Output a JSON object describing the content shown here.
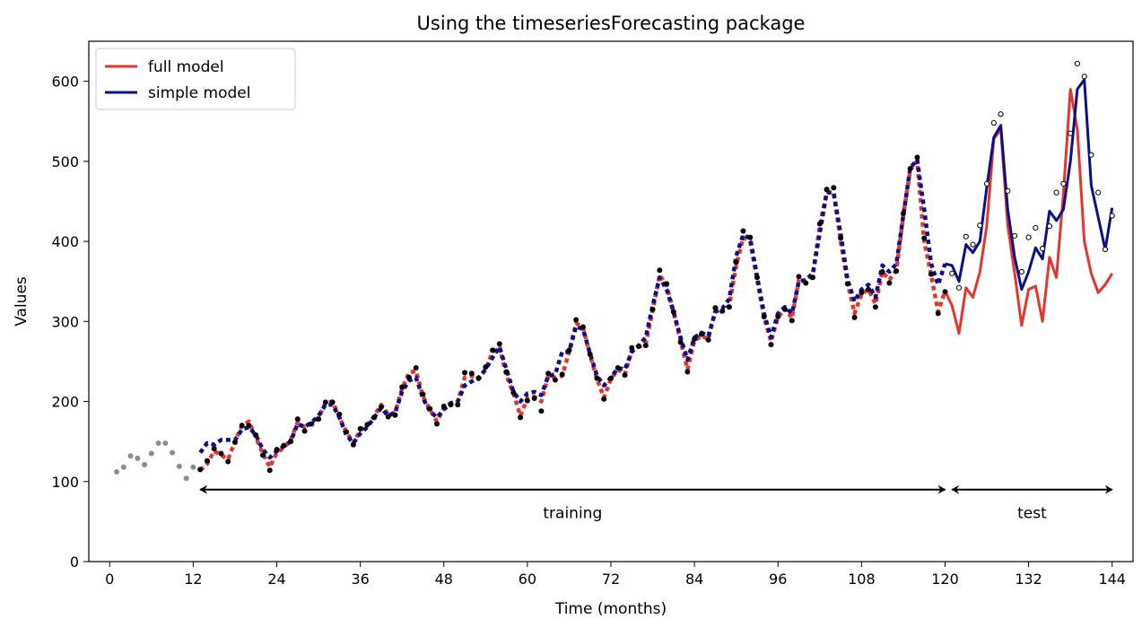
{
  "chart_data": {
    "type": "line",
    "title": "Using the timeseriesForecasting package",
    "xlabel": "Time (months)",
    "ylabel": "Values",
    "xlim": [
      -3,
      147
    ],
    "ylim": [
      0,
      650
    ],
    "xticks": [
      0,
      12,
      24,
      36,
      48,
      60,
      72,
      84,
      96,
      108,
      120,
      132,
      144
    ],
    "yticks": [
      0,
      100,
      200,
      300,
      400,
      500,
      600
    ],
    "grid": false,
    "legend_position": "top-left",
    "legend": [
      {
        "label": "full model",
        "color": "#e8352a"
      },
      {
        "label": "simple model",
        "color": "#0b0f8a"
      }
    ],
    "observed": {
      "x": [
        1,
        2,
        3,
        4,
        5,
        6,
        7,
        8,
        9,
        10,
        11,
        12,
        13,
        14,
        15,
        16,
        17,
        18,
        19,
        20,
        21,
        22,
        23,
        24,
        25,
        26,
        27,
        28,
        29,
        30,
        31,
        32,
        33,
        34,
        35,
        36,
        37,
        38,
        39,
        40,
        41,
        42,
        43,
        44,
        45,
        46,
        47,
        48,
        49,
        50,
        51,
        52,
        53,
        54,
        55,
        56,
        57,
        58,
        59,
        60,
        61,
        62,
        63,
        64,
        65,
        66,
        67,
        68,
        69,
        70,
        71,
        72,
        73,
        74,
        75,
        76,
        77,
        78,
        79,
        80,
        81,
        82,
        83,
        84,
        85,
        86,
        87,
        88,
        89,
        90,
        91,
        92,
        93,
        94,
        95,
        96,
        97,
        98,
        99,
        100,
        101,
        102,
        103,
        104,
        105,
        106,
        107,
        108,
        109,
        110,
        111,
        112,
        113,
        114,
        115,
        116,
        117,
        118,
        119,
        120,
        121,
        122,
        123,
        124,
        125,
        126,
        127,
        128,
        129,
        130,
        131,
        132,
        133,
        134,
        135,
        136,
        137,
        138,
        139,
        140,
        141,
        142,
        143,
        144
      ],
      "y": [
        112,
        118,
        132,
        129,
        121,
        135,
        148,
        148,
        136,
        119,
        104,
        118,
        115,
        126,
        141,
        135,
        125,
        149,
        170,
        170,
        158,
        133,
        114,
        140,
        145,
        150,
        178,
        163,
        172,
        178,
        199,
        199,
        184,
        162,
        146,
        166,
        171,
        180,
        193,
        181,
        183,
        218,
        230,
        242,
        209,
        191,
        172,
        194,
        196,
        196,
        236,
        235,
        229,
        243,
        264,
        272,
        237,
        211,
        180,
        201,
        204,
        188,
        235,
        227,
        234,
        264,
        302,
        293,
        259,
        229,
        203,
        229,
        242,
        233,
        267,
        269,
        270,
        315,
        364,
        347,
        312,
        274,
        237,
        278,
        284,
        277,
        317,
        313,
        318,
        374,
        413,
        405,
        355,
        306,
        271,
        306,
        315,
        301,
        356,
        348,
        355,
        422,
        465,
        467,
        404,
        347,
        305,
        336,
        340,
        318,
        362,
        348,
        363,
        435,
        491,
        505,
        404,
        359,
        310,
        337,
        360,
        342,
        406,
        396,
        420,
        472,
        548,
        559,
        463,
        407,
        362,
        405,
        417,
        391,
        419,
        461,
        472,
        535,
        622,
        606,
        508,
        461,
        390,
        432
      ],
      "warmup_count": 12,
      "training_end": 120
    },
    "series": [
      {
        "name": "full model",
        "color": "#e8352a",
        "x": [
          13,
          14,
          15,
          16,
          17,
          18,
          19,
          20,
          21,
          22,
          23,
          24,
          25,
          26,
          27,
          28,
          29,
          30,
          31,
          32,
          33,
          34,
          35,
          36,
          37,
          38,
          39,
          40,
          41,
          42,
          43,
          44,
          45,
          46,
          47,
          48,
          49,
          50,
          51,
          52,
          53,
          54,
          55,
          56,
          57,
          58,
          59,
          60,
          61,
          62,
          63,
          64,
          65,
          66,
          67,
          68,
          69,
          70,
          71,
          72,
          73,
          74,
          75,
          76,
          77,
          78,
          79,
          80,
          81,
          82,
          83,
          84,
          85,
          86,
          87,
          88,
          89,
          90,
          91,
          92,
          93,
          94,
          95,
          96,
          97,
          98,
          99,
          100,
          101,
          102,
          103,
          104,
          105,
          106,
          107,
          108,
          109,
          110,
          111,
          112,
          113,
          114,
          115,
          116,
          117,
          118,
          119,
          120,
          121,
          122,
          123,
          124,
          125,
          126,
          127,
          128,
          129,
          130,
          131,
          132,
          133,
          134,
          135,
          136,
          137,
          138,
          139,
          140,
          141,
          142,
          143,
          144
        ],
        "y": [
          114,
          122,
          138,
          133,
          128,
          150,
          170,
          175,
          155,
          135,
          118,
          136,
          142,
          152,
          174,
          168,
          172,
          180,
          198,
          200,
          180,
          162,
          148,
          164,
          170,
          182,
          196,
          184,
          186,
          216,
          236,
          238,
          206,
          190,
          175,
          192,
          198,
          200,
          230,
          232,
          228,
          240,
          262,
          268,
          232,
          210,
          182,
          204,
          206,
          200,
          232,
          230,
          232,
          262,
          298,
          292,
          258,
          228,
          205,
          228,
          240,
          234,
          264,
          268,
          272,
          314,
          358,
          345,
          312,
          276,
          240,
          276,
          282,
          278,
          314,
          312,
          320,
          370,
          405,
          400,
          352,
          305,
          275,
          305,
          316,
          304,
          352,
          350,
          356,
          420,
          460,
          462,
          400,
          348,
          310,
          334,
          340,
          322,
          362,
          352,
          364,
          432,
          490,
          500,
          400,
          358,
          312,
          338,
          320,
          285,
          342,
          330,
          362,
          420,
          528,
          540,
          420,
          360,
          295,
          340,
          344,
          300,
          380,
          355,
          460,
          590,
          540,
          400,
          360,
          336,
          346,
          360
        ]
      },
      {
        "name": "simple model",
        "color": "#0b0f8a",
        "x": [
          13,
          14,
          15,
          16,
          17,
          18,
          19,
          20,
          21,
          22,
          23,
          24,
          25,
          26,
          27,
          28,
          29,
          30,
          31,
          32,
          33,
          34,
          35,
          36,
          37,
          38,
          39,
          40,
          41,
          42,
          43,
          44,
          45,
          46,
          47,
          48,
          49,
          50,
          51,
          52,
          53,
          54,
          55,
          56,
          57,
          58,
          59,
          60,
          61,
          62,
          63,
          64,
          65,
          66,
          67,
          68,
          69,
          70,
          71,
          72,
          73,
          74,
          75,
          76,
          77,
          78,
          79,
          80,
          81,
          82,
          83,
          84,
          85,
          86,
          87,
          88,
          89,
          90,
          91,
          92,
          93,
          94,
          95,
          96,
          97,
          98,
          99,
          100,
          101,
          102,
          103,
          104,
          105,
          106,
          107,
          108,
          109,
          110,
          111,
          112,
          113,
          114,
          115,
          116,
          117,
          118,
          119,
          120,
          121,
          122,
          123,
          124,
          125,
          126,
          127,
          128,
          129,
          130,
          131,
          132,
          133,
          134,
          135,
          136,
          137,
          138,
          139,
          140,
          141,
          142,
          143,
          144
        ],
        "y": [
          136,
          148,
          146,
          152,
          152,
          152,
          165,
          168,
          158,
          140,
          130,
          138,
          144,
          150,
          172,
          168,
          174,
          182,
          196,
          196,
          180,
          158,
          148,
          160,
          168,
          180,
          192,
          182,
          186,
          212,
          226,
          230,
          204,
          188,
          180,
          190,
          198,
          200,
          220,
          225,
          230,
          240,
          255,
          268,
          240,
          212,
          200,
          210,
          212,
          208,
          232,
          234,
          262,
          262,
          294,
          290,
          260,
          232,
          220,
          230,
          242,
          240,
          262,
          270,
          280,
          320,
          355,
          340,
          312,
          280,
          252,
          280,
          286,
          282,
          312,
          316,
          328,
          382,
          408,
          404,
          356,
          310,
          280,
          310,
          318,
          310,
          350,
          352,
          360,
          410,
          462,
          460,
          410,
          352,
          325,
          340,
          346,
          330,
          370,
          362,
          372,
          432,
          492,
          502,
          440,
          372,
          346,
          372,
          370,
          350,
          396,
          386,
          400,
          468,
          530,
          545,
          440,
          380,
          340,
          362,
          392,
          378,
          438,
          426,
          440,
          500,
          590,
          602,
          470,
          430,
          390,
          442
        ]
      }
    ],
    "annotations": [
      {
        "text": "training",
        "x_from": 13,
        "x_to": 120,
        "y": 90
      },
      {
        "text": "test",
        "x_from": 121,
        "x_to": 144,
        "y": 90
      }
    ]
  }
}
